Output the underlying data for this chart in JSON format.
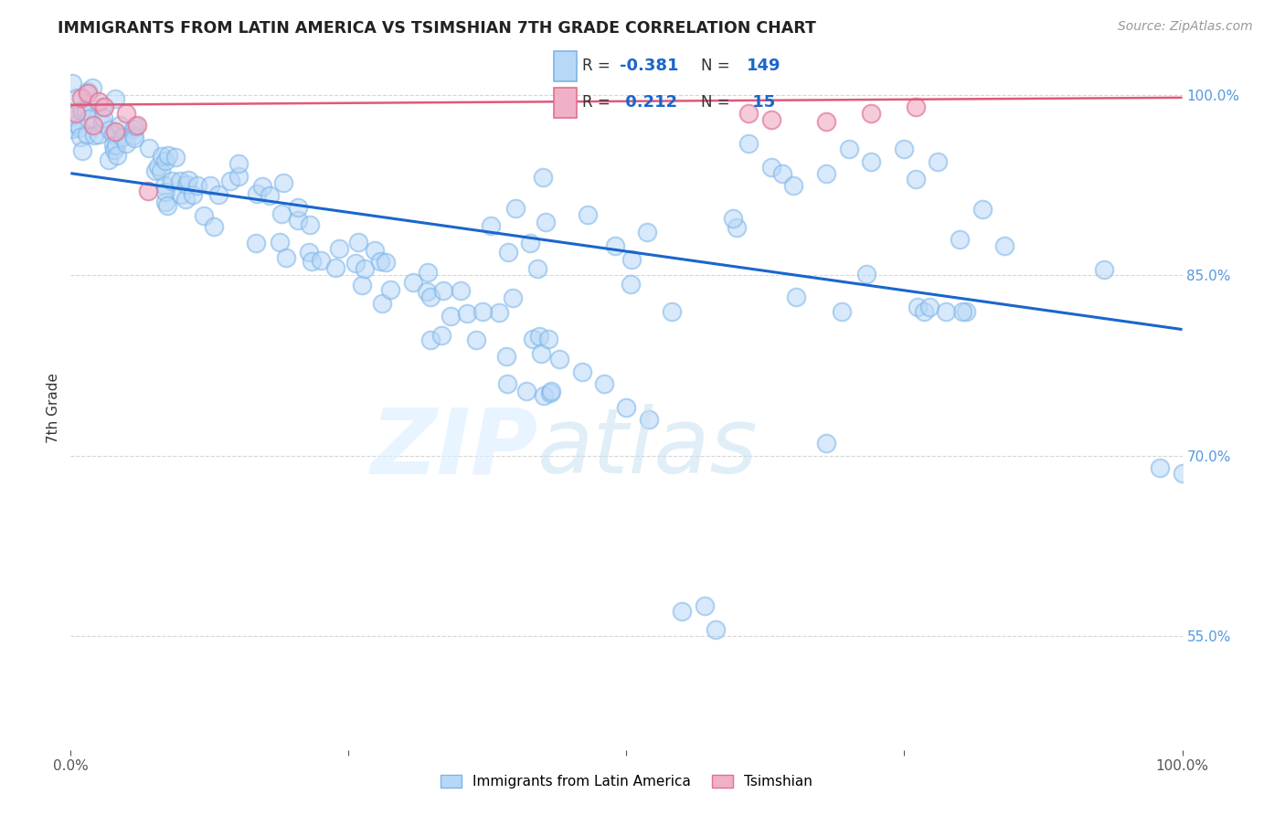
{
  "title": "IMMIGRANTS FROM LATIN AMERICA VS TSIMSHIAN 7TH GRADE CORRELATION CHART",
  "source": "Source: ZipAtlas.com",
  "ylabel": "7th Grade",
  "ytick_labels": [
    "100.0%",
    "85.0%",
    "70.0%",
    "55.0%"
  ],
  "ytick_values": [
    1.0,
    0.85,
    0.7,
    0.55
  ],
  "xlim": [
    0.0,
    1.0
  ],
  "ylim": [
    0.455,
    1.025
  ],
  "blue_edge_color": "#7ab4e8",
  "blue_face_color": "#b8d8f8",
  "pink_edge_color": "#e07090",
  "pink_face_color": "#f0b0c8",
  "trendline_blue_color": "#1a66cc",
  "trendline_pink_color": "#e05878",
  "grid_color": "#cccccc",
  "title_color": "#222222",
  "source_color": "#999999",
  "ytick_color": "#5599dd",
  "xtick_color": "#555555",
  "trendline_blue_start_y": 0.935,
  "trendline_blue_end_y": 0.805,
  "trendline_pink_start_y": 0.992,
  "trendline_pink_end_y": 0.998
}
